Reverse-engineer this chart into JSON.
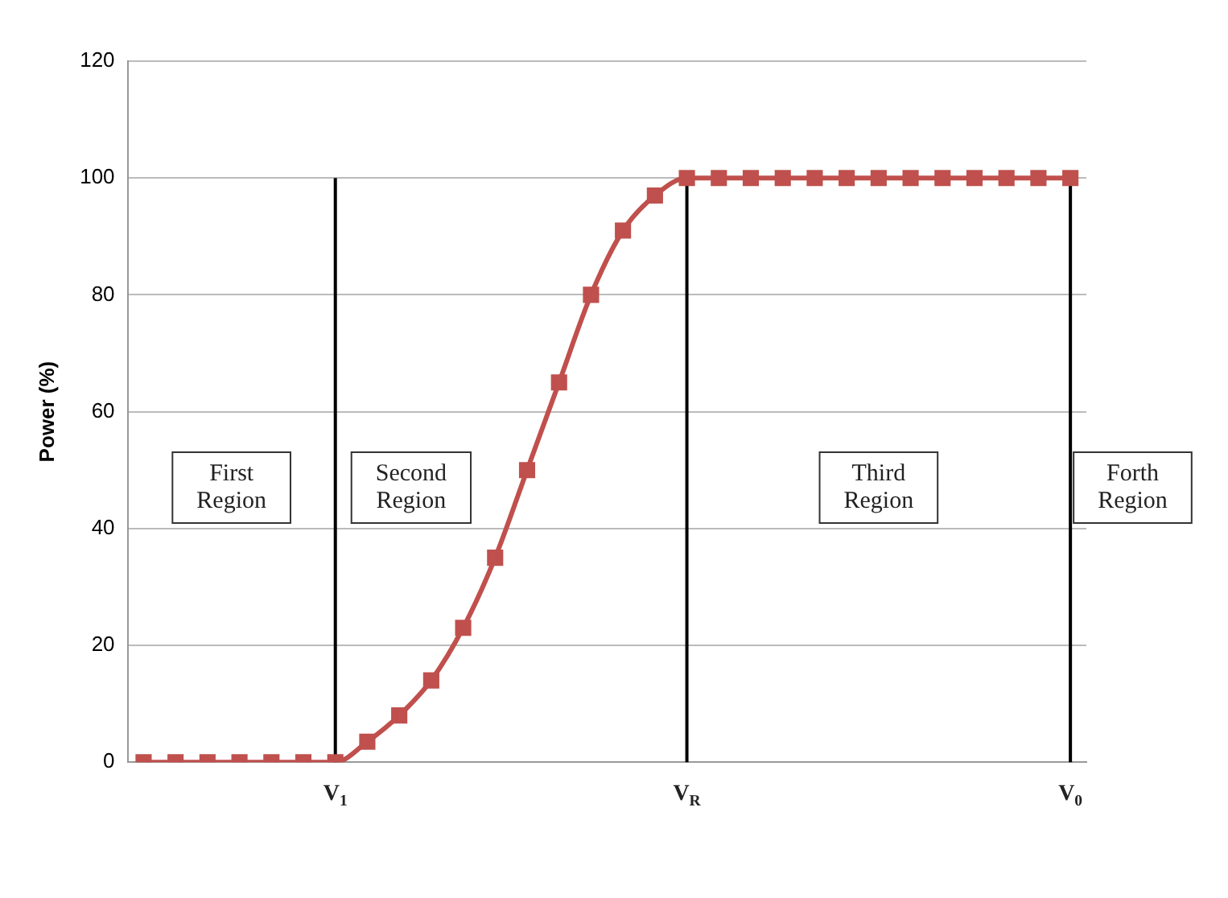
{
  "chart_data": {
    "type": "line",
    "ylabel": "Power (%)",
    "categories": [
      null,
      null,
      null,
      null,
      null,
      null,
      "V$_{1}$",
      null,
      null,
      null,
      null,
      null,
      null,
      null,
      null,
      null,
      null,
      "V$_{R}$",
      null,
      null,
      null,
      null,
      null,
      null,
      null,
      null,
      null,
      null,
      null,
      "V$_{0}$"
    ],
    "series": [
      {
        "color": "#c0504d",
        "values": [
          0,
          0,
          0,
          0,
          0,
          0,
          0,
          3.5,
          8,
          14,
          23,
          35,
          50,
          65,
          80,
          91,
          97,
          100,
          100,
          100,
          100,
          100,
          100,
          100,
          100,
          100,
          100,
          100,
          100,
          100
        ]
      }
    ],
    "ylim": [
      0,
      120
    ],
    "yticks": [
      0,
      20,
      40,
      60,
      80,
      100,
      120
    ],
    "grid": "y",
    "legend": false,
    "marker": "square",
    "line_style": "solid",
    "ref_lines": [
      {
        "axis": "x",
        "value": "V$_{1}$",
        "color": "#000000"
      },
      {
        "axis": "x",
        "value": "V$_{R}$",
        "color": "#000000"
      },
      {
        "axis": "x",
        "value": "V$_{0}$",
        "color": "#000000"
      }
    ],
    "annotations": [
      "First\nRegion",
      "Second\nRegion",
      "Third\nRegion",
      "Forth\nRegion"
    ]
  }
}
